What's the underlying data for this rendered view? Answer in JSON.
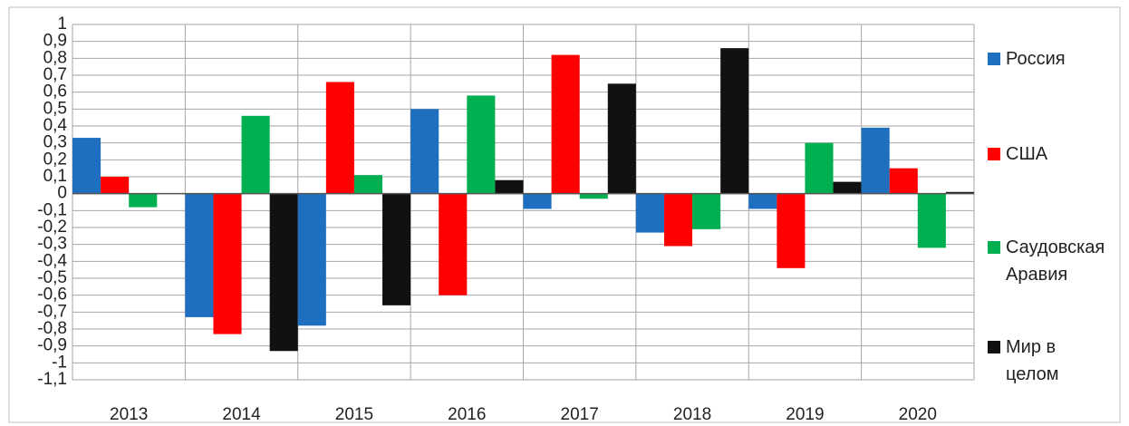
{
  "chart_data": {
    "type": "bar",
    "categories": [
      "2013",
      "2014",
      "2015",
      "2016",
      "2017",
      "2018",
      "2019",
      "2020"
    ],
    "series": [
      {
        "name": "Россия",
        "color": "#1f6fc0",
        "values": [
          0.33,
          -0.73,
          -0.78,
          0.5,
          -0.09,
          -0.23,
          -0.09,
          0.39
        ]
      },
      {
        "name": "США",
        "color": "#ff0000",
        "values": [
          0.1,
          -0.83,
          0.66,
          -0.6,
          0.82,
          -0.31,
          -0.44,
          0.15
        ]
      },
      {
        "name": "Саудовская Аравия",
        "color": "#00b050",
        "values": [
          -0.08,
          0.46,
          0.11,
          0.58,
          -0.03,
          -0.21,
          0.3,
          -0.32
        ]
      },
      {
        "name": "Мир в целом",
        "color": "#111111",
        "values": [
          0,
          -0.93,
          -0.66,
          0.08,
          0.65,
          0.86,
          0.07,
          0.01
        ]
      }
    ],
    "ylim": [
      -1.1,
      1
    ],
    "yticks": [
      1,
      {
        "value": 0.9,
        "label": "0,9"
      },
      {
        "value": 0.8,
        "label": "0,8"
      },
      {
        "value": 0.7,
        "label": "0,7"
      },
      {
        "value": 0.6,
        "label": "0,6"
      },
      {
        "value": 0.5,
        "label": "0,5"
      },
      {
        "value": 0.4,
        "label": "0,4"
      },
      {
        "value": 0.3,
        "label": "0,3"
      },
      {
        "value": 0.2,
        "label": "0,2"
      },
      {
        "value": 0.1,
        "label": "0,1"
      },
      0,
      {
        "value": -0.1,
        "label": "-0,1"
      },
      {
        "value": -0.2,
        "label": "-0,2"
      },
      {
        "value": -0.3,
        "label": "-0,3"
      },
      {
        "value": -0.4,
        "label": "-0,4"
      },
      {
        "value": -0.5,
        "label": "-0,5"
      },
      {
        "value": -0.6,
        "label": "-0,6"
      },
      {
        "value": -0.7,
        "label": "-0,7"
      },
      {
        "value": -0.8,
        "label": "-0,8"
      },
      {
        "value": -0.9,
        "label": "-0,9"
      },
      -1,
      {
        "value": -1.1,
        "label": "-1,1"
      }
    ],
    "grid": true,
    "legend": "right"
  }
}
